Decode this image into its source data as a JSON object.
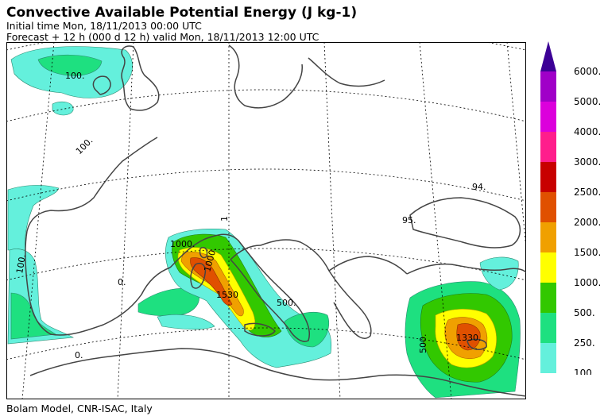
{
  "header": {
    "title": "Convective Available Potential Energy (J kg-1)",
    "initial_time": "Initial time  Mon, 18/11/2013  00:00 UTC",
    "forecast": "Forecast  +  12 h  (000 d 12 h)  valid Mon, 18/11/2013 12:00 UTC"
  },
  "footer": {
    "credit": "Bolam Model, CNR-ISAC, Italy"
  },
  "legend": {
    "levels": [
      "6000.",
      "5000.",
      "4000.",
      "3000.",
      "2500.",
      "2000.",
      "1500.",
      "1000.",
      "500.",
      "250.",
      "100."
    ],
    "colors": [
      "#a000c8",
      "#dc00dc",
      "#ff1e8c",
      "#c80000",
      "#e05000",
      "#f0a000",
      "#ffff00",
      "#32c800",
      "#1ee080",
      "#64f0dc"
    ],
    "arrow_color": "#3c0096"
  },
  "map_labels": {
    "atlantic_north": "100.",
    "biscay": "100.",
    "iberia_west": "100.",
    "spain": "0.",
    "algeria": "0.",
    "black_sea": "94.",
    "turkey": "95.",
    "tyrrhenian": "1000.",
    "ligurian": "1000.",
    "sardinia": "1530",
    "ionian": "500.",
    "levant": "500.",
    "cyprus_max": "1330.",
    "alps": "1"
  }
}
